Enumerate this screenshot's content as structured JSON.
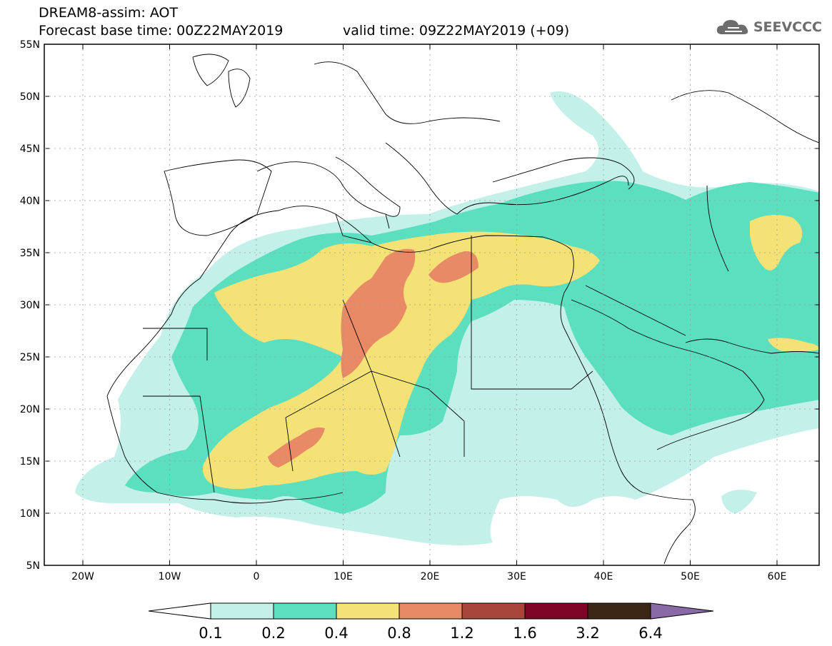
{
  "header": {
    "title_line1": "DREAM8-assim: AOT",
    "title_line2": "Forecast base time: 00Z22MAY2019",
    "valid_time": "valid time: 09Z22MAY2019 (+09)",
    "logo_text": "SEEVCCC"
  },
  "axes": {
    "lat_labels": [
      "55N",
      "50N",
      "45N",
      "40N",
      "35N",
      "30N",
      "25N",
      "20N",
      "15N",
      "10N",
      "5N"
    ],
    "lon_labels": [
      "20W",
      "10W",
      "0",
      "10E",
      "20E",
      "30E",
      "40E",
      "50E",
      "60E"
    ]
  },
  "colorbar": {
    "colors": [
      "#ffffff",
      "#c4f0ea",
      "#5cdfbf",
      "#f5e276",
      "#e88a66",
      "#a8463b",
      "#7e0526",
      "#3d2614",
      "#8a6aa6"
    ],
    "labels": [
      "0.1",
      "0.2",
      "0.4",
      "0.8",
      "1.2",
      "1.6",
      "3.2",
      "6.4"
    ]
  },
  "colors": {
    "level1": "#c4f0ea",
    "level2": "#5cdfbf",
    "level3": "#f5e276",
    "level4": "#e88a66"
  }
}
